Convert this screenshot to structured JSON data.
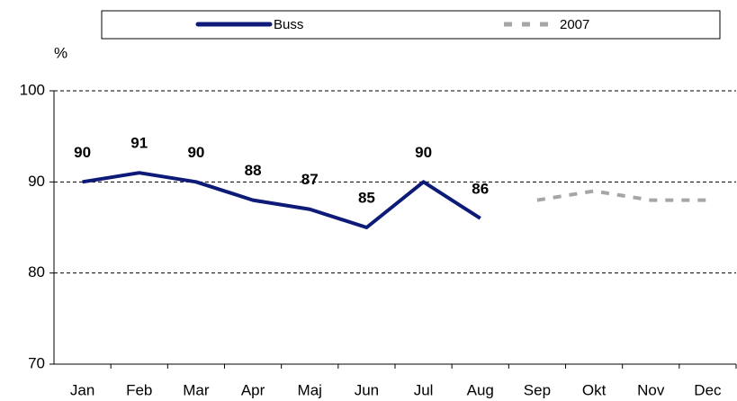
{
  "chart_data": {
    "type": "line",
    "y_label": "%",
    "categories": [
      "Jan",
      "Feb",
      "Mar",
      "Apr",
      "Maj",
      "Jun",
      "Jul",
      "Aug",
      "Sep",
      "Okt",
      "Nov",
      "Dec"
    ],
    "series": [
      {
        "name": "Buss",
        "color": "#0d1a78",
        "style": "solid",
        "data_labels": true,
        "values": [
          90,
          91,
          90,
          88,
          87,
          85,
          90,
          86,
          null,
          null,
          null,
          null
        ]
      },
      {
        "name": "2007",
        "color": "#a6a6a6",
        "style": "dashed",
        "data_labels": false,
        "values": [
          null,
          null,
          null,
          null,
          null,
          null,
          null,
          null,
          88,
          89,
          88,
          88
        ]
      }
    ],
    "ylim": [
      70,
      100
    ],
    "yticks": [
      70,
      80,
      90,
      100
    ],
    "grid": true,
    "legend": "top"
  }
}
